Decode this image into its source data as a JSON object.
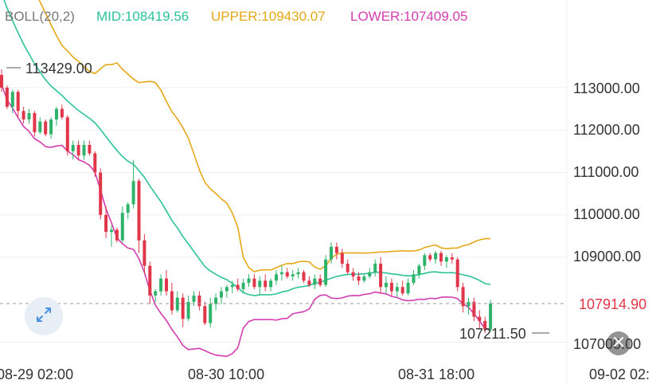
{
  "indicator": {
    "name": "BOLL(20,2)",
    "mid": "MID:108419.56",
    "upper": "UPPER:109430.07",
    "lower": "LOWER:107409.05"
  },
  "colors": {
    "mid": "#2cc39a",
    "upper": "#e6a817",
    "lower": "#d43db0",
    "up_candle": "#2fb36b",
    "down_candle": "#e0364a",
    "axis_text": "#333333",
    "current_price_bg": "#e0364a"
  },
  "price_axis": {
    "ticks": [
      "113000.00",
      "112000.00",
      "111000.00",
      "110000.00",
      "109000.00",
      "107000.00"
    ]
  },
  "time_axis": {
    "ticks": [
      "08-29 02:00",
      "08-30 10:00",
      "08-31 18:00",
      "09-02 02:"
    ]
  },
  "annotations": {
    "high_label": "113429.00",
    "low_label": "107211.50",
    "current_price": "107914.90"
  },
  "controls": {
    "expand_icon": "expand-diagonal-icon",
    "close_icon": "close-icon"
  },
  "chart_data": {
    "type": "candlestick",
    "price_range": [
      106850,
      113850
    ],
    "candles": [
      [
        113300,
        113429,
        112900,
        113000
      ],
      [
        113000,
        113050,
        112500,
        112550
      ],
      [
        112550,
        112950,
        112400,
        112900
      ],
      [
        112900,
        112950,
        112300,
        112450
      ],
      [
        112450,
        112550,
        112150,
        112250
      ],
      [
        112250,
        112500,
        112150,
        112400
      ],
      [
        112400,
        112450,
        111850,
        111950
      ],
      [
        111950,
        112300,
        111900,
        112200
      ],
      [
        112200,
        112250,
        111850,
        111900
      ],
      [
        111900,
        112300,
        111800,
        112250
      ],
      [
        112250,
        112550,
        112100,
        112500
      ],
      [
        112500,
        112600,
        112250,
        112300
      ],
      [
        112300,
        112350,
        111400,
        111500
      ],
      [
        111500,
        111750,
        111300,
        111650
      ],
      [
        111650,
        111750,
        111300,
        111400
      ],
      [
        111400,
        111750,
        111300,
        111650
      ],
      [
        111650,
        111750,
        111400,
        111450
      ],
      [
        111450,
        111500,
        110900,
        111000
      ],
      [
        111000,
        111100,
        109900,
        110000
      ],
      [
        110000,
        110200,
        109450,
        109600
      ],
      [
        109600,
        109750,
        109250,
        109650
      ],
      [
        109650,
        109700,
        109350,
        109400
      ],
      [
        109400,
        110200,
        109350,
        110050
      ],
      [
        110050,
        110300,
        109900,
        110250
      ],
      [
        110250,
        111300,
        110150,
        110800
      ],
      [
        110800,
        110850,
        109100,
        109400
      ],
      [
        109400,
        109550,
        108600,
        108800
      ],
      [
        108800,
        108900,
        107900,
        108100
      ],
      [
        108100,
        108250,
        107950,
        108200
      ],
      [
        108200,
        108600,
        108100,
        108500
      ],
      [
        108500,
        108700,
        108100,
        108200
      ],
      [
        108200,
        108400,
        107650,
        107750
      ],
      [
        107750,
        108200,
        107700,
        108050
      ],
      [
        108050,
        108150,
        107350,
        107550
      ],
      [
        107550,
        108100,
        107500,
        107950
      ],
      [
        107950,
        108200,
        107850,
        108100
      ],
      [
        108100,
        108200,
        107750,
        107850
      ],
      [
        107850,
        107950,
        107400,
        107450
      ],
      [
        107450,
        108050,
        107350,
        107900
      ],
      [
        107900,
        108150,
        107750,
        108050
      ],
      [
        108050,
        108300,
        107900,
        108200
      ],
      [
        108200,
        108350,
        108050,
        108300
      ],
      [
        108300,
        108450,
        108150,
        108350
      ],
      [
        108350,
        108500,
        108200,
        108250
      ],
      [
        108250,
        108500,
        108150,
        108400
      ],
      [
        108400,
        108600,
        108300,
        108500
      ],
      [
        108500,
        108600,
        108250,
        108300
      ],
      [
        108300,
        108550,
        108100,
        108450
      ],
      [
        108450,
        108600,
        108200,
        108300
      ],
      [
        108300,
        108500,
        108200,
        108450
      ],
      [
        108450,
        108700,
        108350,
        108600
      ],
      [
        108600,
        108800,
        108450,
        108650
      ],
      [
        108650,
        108750,
        108500,
        108550
      ],
      [
        108550,
        108700,
        108450,
        108600
      ],
      [
        108600,
        108750,
        108500,
        108650
      ],
      [
        108650,
        108700,
        108400,
        108450
      ],
      [
        108450,
        108550,
        108300,
        108350
      ],
      [
        108350,
        108600,
        108250,
        108500
      ],
      [
        108500,
        108600,
        108300,
        108350
      ],
      [
        108350,
        109050,
        108300,
        108950
      ],
      [
        108950,
        109350,
        108850,
        109250
      ],
      [
        109250,
        109350,
        108950,
        109100
      ],
      [
        109100,
        109200,
        108750,
        108850
      ],
      [
        108850,
        108950,
        108600,
        108650
      ],
      [
        108650,
        108750,
        108450,
        108550
      ],
      [
        108550,
        108650,
        108350,
        108450
      ],
      [
        108450,
        108600,
        108400,
        108550
      ],
      [
        108550,
        108750,
        108500,
        108650
      ],
      [
        108650,
        108950,
        108550,
        108850
      ],
      [
        108850,
        109000,
        108150,
        108300
      ],
      [
        108300,
        108550,
        108150,
        108400
      ],
      [
        108400,
        108500,
        108100,
        108200
      ],
      [
        108200,
        108400,
        108050,
        108300
      ],
      [
        108300,
        108450,
        108100,
        108150
      ],
      [
        108150,
        108500,
        108100,
        108400
      ],
      [
        108400,
        108700,
        108350,
        108600
      ],
      [
        108600,
        108850,
        108500,
        108800
      ],
      [
        108800,
        109100,
        108700,
        109050
      ],
      [
        109050,
        109100,
        108900,
        108950
      ],
      [
        108950,
        109150,
        108850,
        109100
      ],
      [
        109100,
        109150,
        108800,
        108900
      ],
      [
        108900,
        109050,
        108750,
        109000
      ],
      [
        109000,
        109100,
        108850,
        108950
      ],
      [
        108950,
        109000,
        108200,
        108300
      ],
      [
        108300,
        108400,
        107700,
        107850
      ],
      [
        107850,
        108050,
        107650,
        107950
      ],
      [
        107950,
        108050,
        107500,
        107600
      ],
      [
        107600,
        107750,
        107300,
        107500
      ],
      [
        107500,
        107600,
        107211,
        107300
      ],
      [
        107300,
        108000,
        107250,
        107915
      ]
    ]
  }
}
